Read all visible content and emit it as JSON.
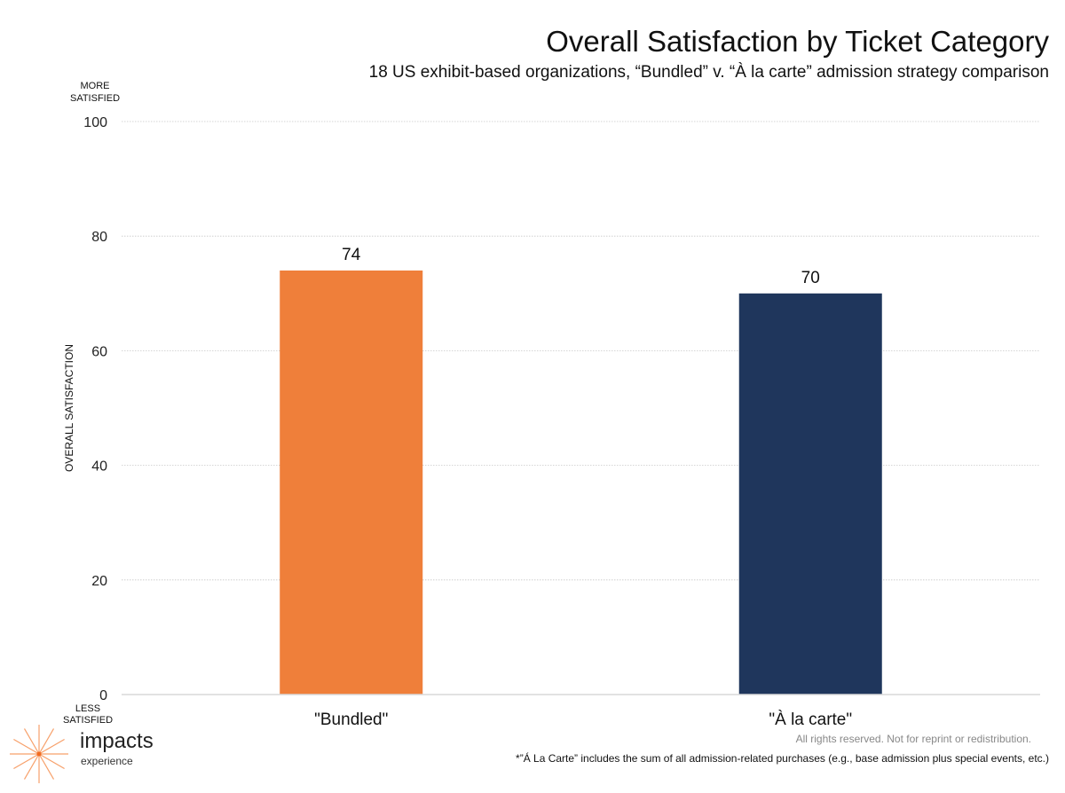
{
  "chart_data": {
    "type": "bar",
    "title": "Overall Satisfaction by Ticket Category",
    "subtitle": "18 US exhibit-based organizations, “Bundled” v. “À la carte” admission strategy comparison",
    "xlabel": "",
    "ylabel": "OVERALL SATISFACTION",
    "y_top_label": "MORE SATISFIED",
    "y_bottom_label": "LESS SATISFIED",
    "categories": [
      "\"Bundled\"",
      "\"À la carte\""
    ],
    "values": [
      74,
      70
    ],
    "data_labels": [
      "74",
      "70"
    ],
    "colors": [
      "#EF7F3A",
      "#1F365C"
    ],
    "ylim": [
      0,
      100
    ],
    "yticks": [
      0,
      20,
      40,
      60,
      80,
      100
    ],
    "grid": true,
    "legend": "none"
  },
  "footer": {
    "rights": "All rights reserved. Not for reprint or redistribution.",
    "note": "*”Á La Carte” includes the sum of all admission-related purchases (e.g., base admission plus special events, etc.)"
  },
  "logo": {
    "name": "impacts",
    "sub": "experience",
    "icon": "starburst-icon",
    "color": "#F7A06A"
  }
}
